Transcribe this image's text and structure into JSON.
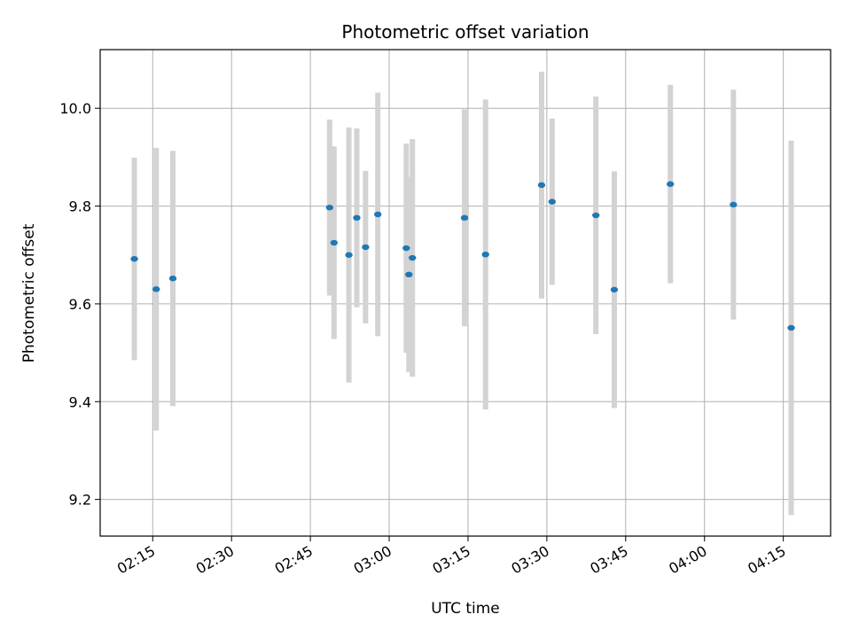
{
  "chart_data": {
    "type": "scatter",
    "title": "Photometric offset variation",
    "xlabel": "UTC time",
    "ylabel": "Photometric offset",
    "xlim": [
      "02:05:00",
      "04:24:00"
    ],
    "ylim": [
      9.125,
      10.12
    ],
    "grid": true,
    "x_ticks": [
      "02:15",
      "02:30",
      "02:45",
      "03:00",
      "03:15",
      "03:30",
      "03:45",
      "04:00",
      "04:15"
    ],
    "y_ticks": [
      "9.2",
      "9.4",
      "9.6",
      "9.8",
      "10.0"
    ],
    "colors": {
      "marker": "#1f77b4",
      "errorbar": "#d3d3d3",
      "grid": "#b0b0b0"
    },
    "points": [
      {
        "t": "02:11:30",
        "y": 9.692,
        "err": 0.207
      },
      {
        "t": "02:15:40",
        "y": 9.63,
        "err": 0.289
      },
      {
        "t": "02:18:50",
        "y": 9.652,
        "err": 0.261
      },
      {
        "t": "02:48:40",
        "y": 9.797,
        "err": 0.18
      },
      {
        "t": "02:49:30",
        "y": 9.725,
        "err": 0.197
      },
      {
        "t": "02:52:20",
        "y": 9.7,
        "err": 0.261
      },
      {
        "t": "02:53:50",
        "y": 9.776,
        "err": 0.183
      },
      {
        "t": "02:55:30",
        "y": 9.716,
        "err": 0.156
      },
      {
        "t": "02:57:50",
        "y": 9.783,
        "err": 0.249
      },
      {
        "t": "03:03:15",
        "y": 9.714,
        "err": 0.214
      },
      {
        "t": "03:03:45",
        "y": 9.66,
        "err": 0.2
      },
      {
        "t": "03:04:25",
        "y": 9.694,
        "err": 0.243
      },
      {
        "t": "03:14:20",
        "y": 9.776,
        "err": 0.222
      },
      {
        "t": "03:18:20",
        "y": 9.701,
        "err": 0.317
      },
      {
        "t": "03:29:00",
        "y": 9.843,
        "err": 0.232
      },
      {
        "t": "03:31:00",
        "y": 9.809,
        "err": 0.17
      },
      {
        "t": "03:39:20",
        "y": 9.781,
        "err": 0.243
      },
      {
        "t": "03:42:50",
        "y": 9.629,
        "err": 0.242
      },
      {
        "t": "03:53:30",
        "y": 9.845,
        "err": 0.203
      },
      {
        "t": "04:05:30",
        "y": 9.803,
        "err": 0.235
      },
      {
        "t": "04:16:30",
        "y": 9.551,
        "err": 0.383
      }
    ]
  }
}
